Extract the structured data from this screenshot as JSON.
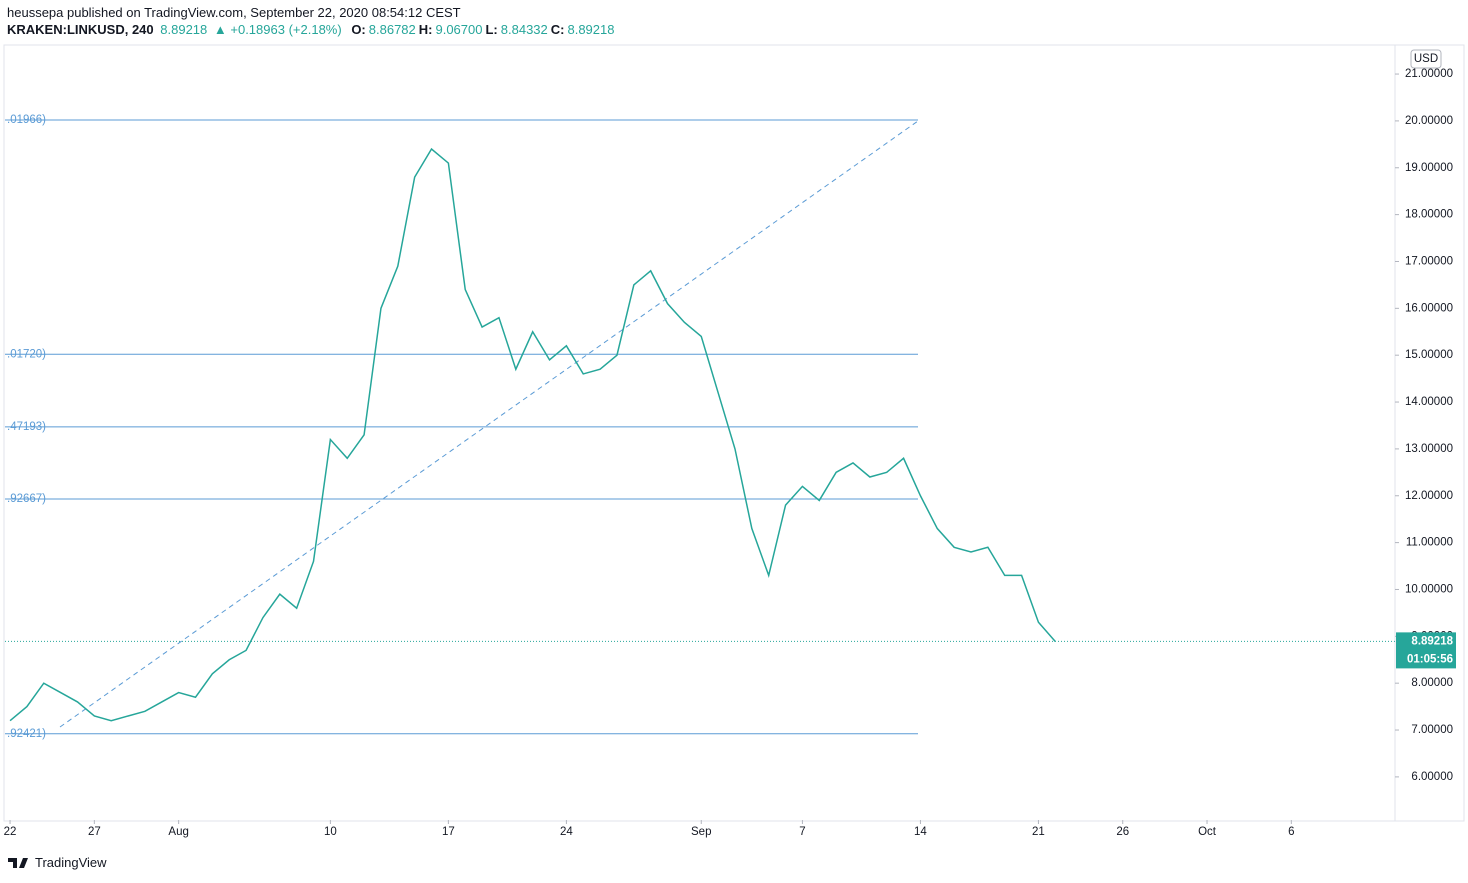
{
  "header": {
    "publisher": "heussepa published on TradingView.com, September 22, 2020 08:54:12 CEST",
    "symbol": "KRAKEN:LINKUSD, 240",
    "price": "8.89218",
    "change": "+0.18963 (+2.18%)",
    "ohlc": [
      {
        "label": "O:",
        "value": "8.86782"
      },
      {
        "label": "H:",
        "value": "9.06700"
      },
      {
        "label": "L:",
        "value": "8.84332"
      },
      {
        "label": "C:",
        "value": "8.89218"
      }
    ]
  },
  "footer": {
    "brand": "TradingView"
  },
  "chart_data": {
    "type": "line",
    "currency": "USD",
    "countdown": "01:05:56",
    "last_price": 8.89218,
    "xlim": [
      -0.3,
      82.15
    ],
    "ylim": [
      5.08,
      21.62
    ],
    "xticks": [
      {
        "value": 0,
        "label": "22"
      },
      {
        "value": 5,
        "label": "27"
      },
      {
        "value": 10,
        "label": "Aug"
      },
      {
        "value": 19,
        "label": "10"
      },
      {
        "value": 26,
        "label": "17"
      },
      {
        "value": 33,
        "label": "24"
      },
      {
        "value": 41,
        "label": "Sep"
      },
      {
        "value": 47,
        "label": "7"
      },
      {
        "value": 54,
        "label": "14"
      },
      {
        "value": 61,
        "label": "21"
      },
      {
        "value": 66,
        "label": "26"
      },
      {
        "value": 71,
        "label": "Oct"
      },
      {
        "value": 76,
        "label": "6"
      }
    ],
    "yticks": [
      {
        "value": 6,
        "label": "6.00000"
      },
      {
        "value": 7,
        "label": "7.00000"
      },
      {
        "value": 8,
        "label": "8.00000"
      },
      {
        "value": 9,
        "label": "9.00000"
      },
      {
        "value": 10,
        "label": "10.00000"
      },
      {
        "value": 11,
        "label": "11.00000"
      },
      {
        "value": 12,
        "label": "12.00000"
      },
      {
        "value": 13,
        "label": "13.00000"
      },
      {
        "value": 14,
        "label": "14.00000"
      },
      {
        "value": 15,
        "label": "15.00000"
      },
      {
        "value": 16,
        "label": "16.00000"
      },
      {
        "value": 17,
        "label": "17.00000"
      },
      {
        "value": 18,
        "label": "18.00000"
      },
      {
        "value": 19,
        "label": "19.00000"
      },
      {
        "value": 20,
        "label": "20.00000"
      },
      {
        "value": 21,
        "label": "21.00000"
      }
    ],
    "levels": [
      {
        "value": 20.02,
        "label": ".01966)"
      },
      {
        "value": 15.02,
        "label": ".01720)"
      },
      {
        "value": 13.47,
        "label": ".47193)"
      },
      {
        "value": 11.93,
        "label": ".92667)"
      },
      {
        "value": 6.92,
        "label": ".92421)"
      }
    ],
    "x": [
      0,
      1,
      2,
      3,
      4,
      5,
      6,
      7,
      8,
      9,
      10,
      11,
      12,
      13,
      14,
      15,
      16,
      17,
      18,
      19,
      20,
      21,
      22,
      23,
      24,
      25,
      26,
      27,
      28,
      29,
      30,
      31,
      32,
      33,
      34,
      35,
      36,
      37,
      38,
      39,
      40,
      41,
      42,
      43,
      44,
      45,
      46,
      47,
      48,
      49,
      50,
      51,
      52,
      53,
      54,
      55,
      56,
      57,
      58,
      59,
      60,
      61,
      62
    ],
    "series": [
      {
        "color": "#26a69a",
        "values": [
          7.2,
          7.5,
          8.0,
          7.8,
          7.6,
          7.3,
          7.2,
          7.3,
          7.4,
          7.6,
          7.8,
          7.7,
          8.2,
          8.5,
          8.7,
          9.4,
          9.9,
          9.6,
          10.6,
          13.2,
          12.8,
          13.3,
          16.0,
          16.9,
          18.8,
          19.4,
          19.1,
          16.4,
          15.6,
          15.8,
          14.7,
          15.5,
          14.9,
          15.2,
          14.6,
          14.7,
          15.0,
          16.5,
          16.8,
          16.1,
          15.7,
          15.4,
          14.2,
          13.0,
          11.3,
          10.3,
          11.8,
          12.2,
          11.9,
          12.5,
          12.7,
          12.4,
          12.5,
          12.8,
          12.0,
          11.3,
          10.9,
          10.8,
          10.9,
          10.3,
          10.3,
          9.3,
          8.89
        ]
      }
    ]
  }
}
